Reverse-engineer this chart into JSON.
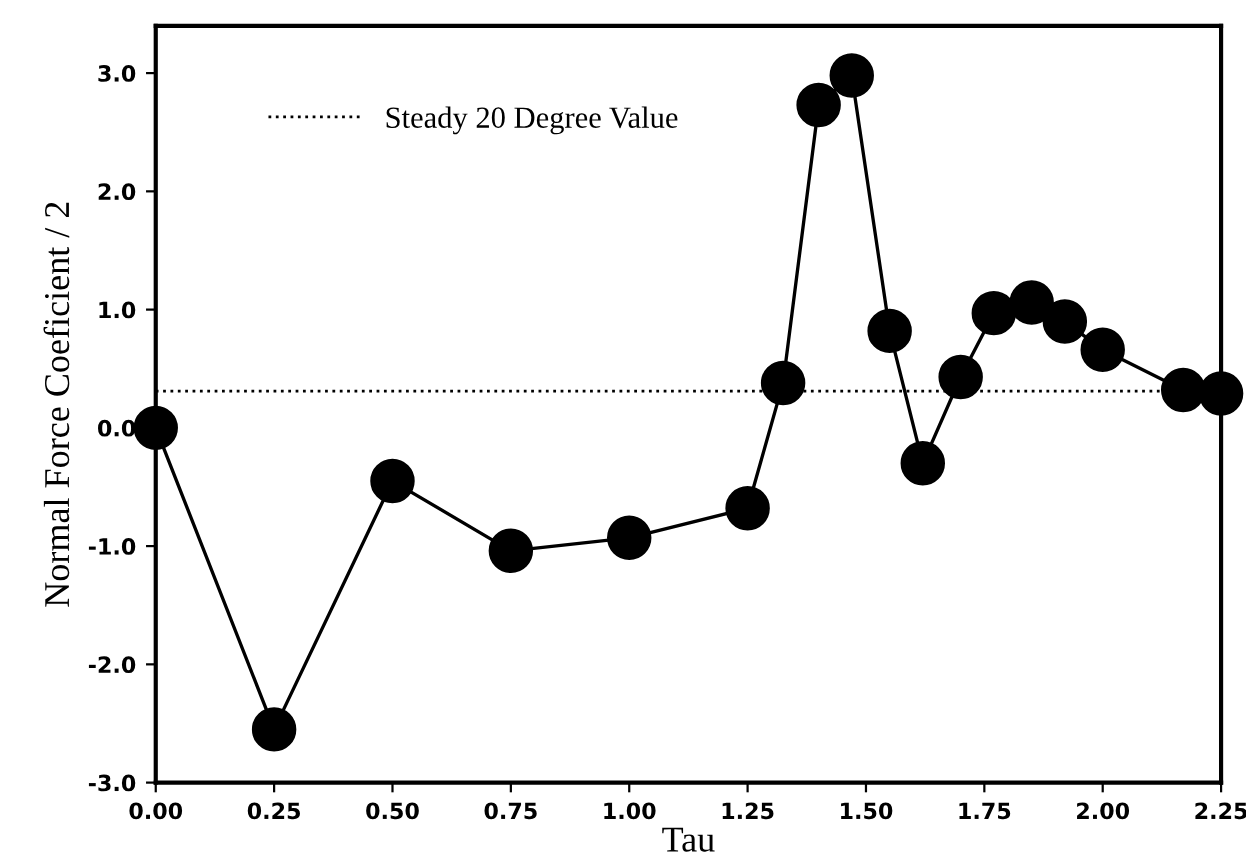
{
  "chart_data": {
    "type": "line",
    "xlabel": "Tau",
    "ylabel": "Normal Force Coeficient / 2",
    "x": [
      0,
      0.25,
      0.5,
      0.75,
      1.0,
      1.25,
      1.325,
      1.4,
      1.47,
      1.55,
      1.62,
      1.7,
      1.77,
      1.85,
      1.92,
      2.0,
      2.17,
      2.25
    ],
    "series": [
      {
        "color": "#000000",
        "values": [
          0.0,
          -2.55,
          -0.45,
          -1.04,
          -0.93,
          -0.68,
          0.38,
          2.73,
          2.98,
          0.82,
          -0.3,
          0.43,
          0.97,
          1.06,
          0.9,
          0.66,
          0.32,
          0.29
        ]
      }
    ],
    "marker": "circle",
    "line_style": "solid",
    "xlim": [
      0,
      2.25
    ],
    "ylim": [
      -3.0,
      3.4
    ],
    "xticks": [
      {
        "value": 0,
        "label": "0.00"
      },
      0.25,
      {
        "value": 0.5,
        "label": "0.50"
      },
      0.75,
      {
        "value": 1.0,
        "label": "1.00"
      },
      1.25,
      {
        "value": 1.5,
        "label": "1.50"
      },
      1.75,
      {
        "value": 2.0,
        "label": "2.00"
      },
      2.25
    ],
    "yticks": [
      {
        "value": -3,
        "label": "-3.0"
      },
      {
        "value": -2,
        "label": "-2.0"
      },
      {
        "value": -1,
        "label": "-1.0"
      },
      {
        "value": 0,
        "label": "0.0"
      },
      {
        "value": 1,
        "label": "1.0"
      },
      {
        "value": 2,
        "label": "2.0"
      },
      {
        "value": 3,
        "label": "3.0"
      }
    ],
    "ref_lines": [
      {
        "axis": "y",
        "value": 0.31,
        "label": "Steady 20 Degree Value",
        "color": "#000000",
        "line_style": "dotted"
      }
    ],
    "grid": false,
    "legend": "upper left"
  }
}
